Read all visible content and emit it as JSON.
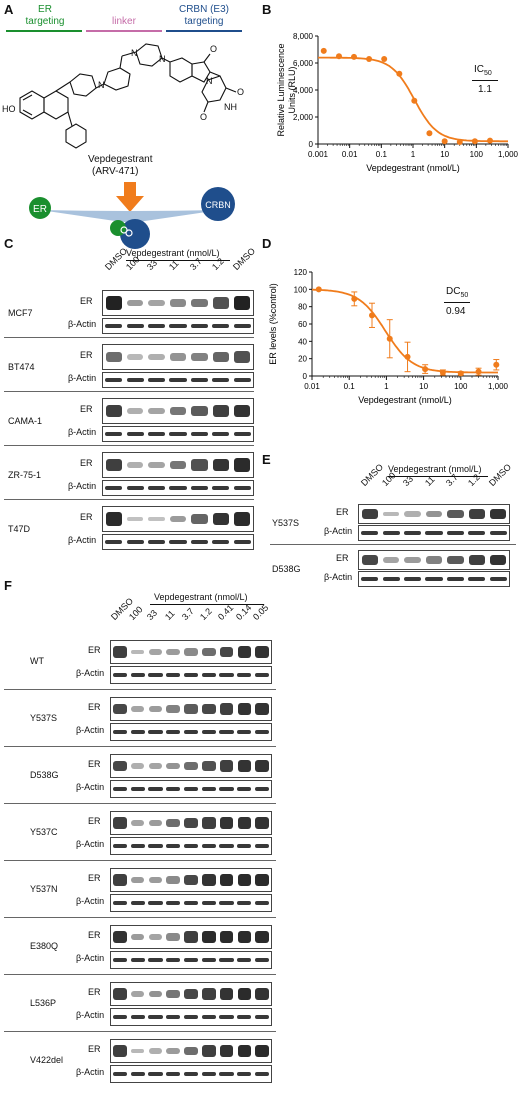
{
  "panelA": {
    "label": "A",
    "header": {
      "er_line1": "ER",
      "er_line2": "targeting",
      "linker": "linker",
      "crbn_line1": "CRBN (E3)",
      "crbn_line2": "targeting"
    },
    "compound_name": "Vepdegestrant",
    "compound_code": "(ARV-471)",
    "er_circle": "ER",
    "crbn_circle": "CRBN",
    "colors": {
      "er": "#1a8f2e",
      "linker": "#c56ca8",
      "crbn": "#1f4e8c",
      "arrow": "#f07c1c"
    }
  },
  "panelB": {
    "label": "B",
    "ic50_label": "IC",
    "ic50_sub": "50",
    "ic50_value": "1.1"
  },
  "panelC": {
    "label": "C",
    "dose_header": "Vepdegestrant (nmol/L)",
    "lanes": [
      "DMSO",
      "100",
      "33",
      "11",
      "3.7",
      "1.2",
      "DMSO"
    ],
    "rows": [
      {
        "cell": "MCF7",
        "er": "ER",
        "actin": "β-Actin",
        "er_levels": [
          1.0,
          0.35,
          0.3,
          0.45,
          0.55,
          0.75,
          1.0
        ]
      },
      {
        "cell": "BT474",
        "er": "ER",
        "actin": "β-Actin",
        "er_levels": [
          0.6,
          0.2,
          0.25,
          0.4,
          0.5,
          0.65,
          0.75
        ]
      },
      {
        "cell": "CAMA-1",
        "er": "ER",
        "actin": "β-Actin",
        "er_levels": [
          0.85,
          0.25,
          0.3,
          0.55,
          0.7,
          0.85,
          0.9
        ]
      },
      {
        "cell": "ZR-75-1",
        "er": "ER",
        "actin": "β-Actin",
        "er_levels": [
          0.85,
          0.25,
          0.3,
          0.55,
          0.75,
          0.9,
          0.95
        ]
      },
      {
        "cell": "T47D",
        "er": "ER",
        "actin": "β-Actin",
        "er_levels": [
          0.95,
          0.15,
          0.15,
          0.35,
          0.65,
          0.9,
          0.95
        ]
      }
    ]
  },
  "panelD": {
    "label": "D",
    "dc50_label": "DC",
    "dc50_sub": "50",
    "dc50_value": "0.94"
  },
  "panelE": {
    "label": "E",
    "dose_header": "Vepdegestrant (nmol/L)",
    "lanes": [
      "DMSO",
      "100",
      "33",
      "11",
      "3.7",
      "1.2",
      "DMSO"
    ],
    "rows": [
      {
        "cell": "Y537S",
        "er": "ER",
        "actin": "β-Actin",
        "er_levels": [
          0.85,
          0.2,
          0.25,
          0.4,
          0.7,
          0.85,
          0.9
        ]
      },
      {
        "cell": "D538G",
        "er": "ER",
        "actin": "β-Actin",
        "er_levels": [
          0.8,
          0.3,
          0.35,
          0.5,
          0.7,
          0.85,
          0.9
        ]
      }
    ]
  },
  "panelF": {
    "label": "F",
    "dose_header": "Vepdegestrant (nmol/L)",
    "lanes": [
      "DMSO",
      "100",
      "33",
      "11",
      "3.7",
      "1.2",
      "0.41",
      "0.14",
      "0.05"
    ],
    "rows": [
      {
        "cell": "WT",
        "er": "ER",
        "actin": "β-Actin",
        "er_levels": [
          0.85,
          0.2,
          0.3,
          0.35,
          0.45,
          0.6,
          0.8,
          0.9,
          0.9
        ]
      },
      {
        "cell": "Y537S",
        "er": "ER",
        "actin": "β-Actin",
        "er_levels": [
          0.8,
          0.3,
          0.35,
          0.5,
          0.7,
          0.8,
          0.85,
          0.9,
          0.9
        ]
      },
      {
        "cell": "D538G",
        "er": "ER",
        "actin": "β-Actin",
        "er_levels": [
          0.8,
          0.25,
          0.3,
          0.4,
          0.6,
          0.75,
          0.85,
          0.9,
          0.9
        ]
      },
      {
        "cell": "Y537C",
        "er": "ER",
        "actin": "β-Actin",
        "er_levels": [
          0.85,
          0.3,
          0.35,
          0.6,
          0.8,
          0.85,
          0.9,
          0.9,
          0.9
        ]
      },
      {
        "cell": "Y537N",
        "er": "ER",
        "actin": "β-Actin",
        "er_levels": [
          0.85,
          0.35,
          0.35,
          0.45,
          0.8,
          0.9,
          0.95,
          0.95,
          0.95
        ]
      },
      {
        "cell": "E380Q",
        "er": "ER",
        "actin": "β-Actin",
        "er_levels": [
          0.9,
          0.35,
          0.3,
          0.45,
          0.85,
          0.95,
          0.95,
          0.95,
          0.95
        ]
      },
      {
        "cell": "L536P",
        "er": "ER",
        "actin": "β-Actin",
        "er_levels": [
          0.85,
          0.3,
          0.4,
          0.55,
          0.8,
          0.85,
          0.9,
          0.95,
          0.9
        ]
      },
      {
        "cell": "V422del",
        "er": "ER",
        "actin": "β-Actin",
        "er_levels": [
          0.85,
          0.2,
          0.25,
          0.35,
          0.6,
          0.85,
          0.9,
          0.95,
          0.95
        ]
      }
    ]
  },
  "chart_data": [
    {
      "type": "scatter",
      "panel": "B",
      "x": [
        0.00152,
        0.0046,
        0.0137,
        0.041,
        0.123,
        0.37,
        1.1,
        3.3,
        10,
        30,
        90,
        270
      ],
      "y": [
        6900,
        6500,
        6450,
        6300,
        6300,
        5200,
        3200,
        800,
        200,
        150,
        200,
        250
      ],
      "fit": {
        "top": 6400,
        "bottom": 200,
        "ic50": 1.1
      },
      "ylabel": "Relative Luminescence Units (RLU)",
      "xlabel": "Vepdegestrant (nmol/L)",
      "xlim": [
        0.001,
        1000
      ],
      "ylim": [
        0,
        8000
      ],
      "xscale": "log",
      "xticks": [
        "0.001",
        "0.01",
        "0.1",
        "1",
        "10",
        "100",
        "1,000"
      ],
      "yticks": [
        "0",
        "2,000",
        "4,000",
        "6,000",
        "8,000"
      ],
      "color": "#f07c1c"
    },
    {
      "type": "scatter",
      "panel": "D",
      "x": [
        0.0152,
        0.137,
        0.41,
        1.23,
        3.7,
        11,
        33,
        100,
        300,
        900
      ],
      "y": [
        100,
        89,
        70,
        43,
        22,
        8,
        4,
        3,
        5,
        13
      ],
      "err": [
        0,
        8,
        14,
        22,
        17,
        5,
        3,
        2,
        4,
        6
      ],
      "fit": {
        "top": 100,
        "bottom": 4,
        "dc50": 0.94
      },
      "ylabel": "ER levels (%control)",
      "xlabel": "Vepdegestrant (nmol/L)",
      "xlim": [
        0.01,
        1000
      ],
      "ylim": [
        0,
        120
      ],
      "xscale": "log",
      "xticks": [
        "0.01",
        "0.1",
        "1",
        "10",
        "100",
        "1,000"
      ],
      "yticks": [
        "0",
        "20",
        "40",
        "60",
        "80",
        "100",
        "120"
      ],
      "color": "#f07c1c"
    }
  ]
}
